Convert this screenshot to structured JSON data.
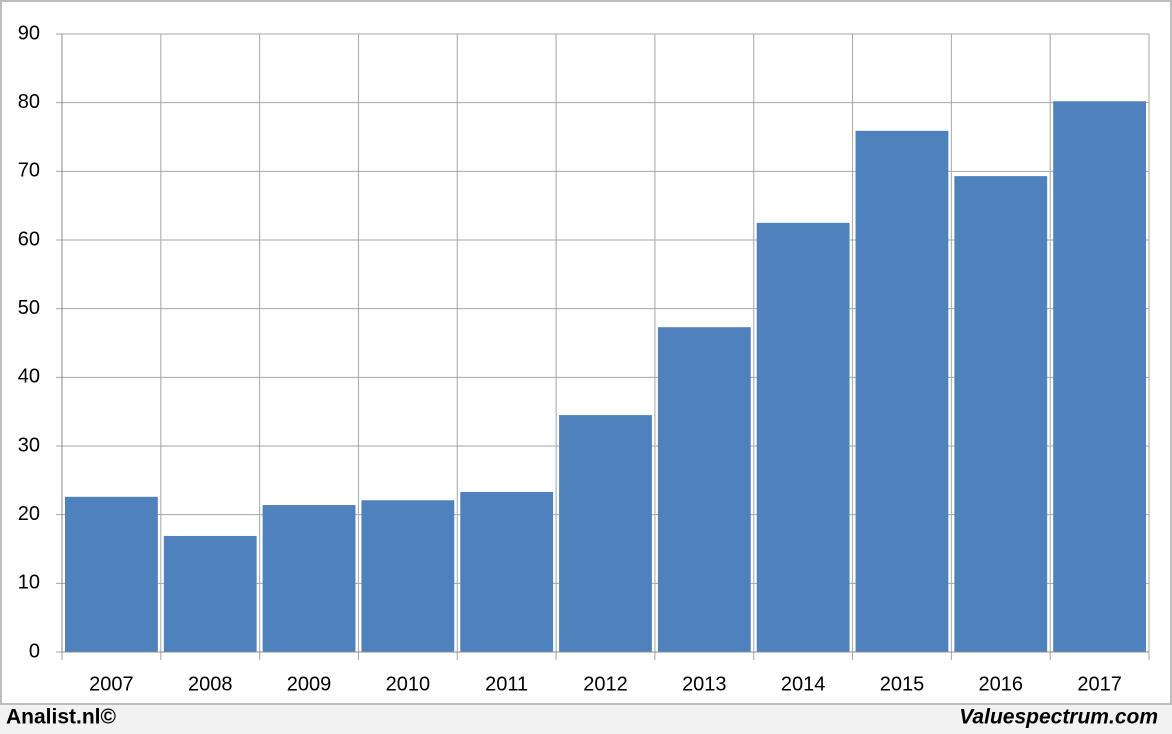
{
  "chart_data": {
    "type": "bar",
    "categories": [
      "2007",
      "2008",
      "2009",
      "2010",
      "2011",
      "2012",
      "2013",
      "2014",
      "2015",
      "2016",
      "2017"
    ],
    "values": [
      22.6,
      16.9,
      21.4,
      22.1,
      23.3,
      34.5,
      47.3,
      62.5,
      75.9,
      69.3,
      80.2
    ],
    "color": "#4f81bd",
    "ylim": [
      0,
      90
    ],
    "yticks": [
      0,
      10,
      20,
      30,
      40,
      50,
      60,
      70,
      80,
      90
    ],
    "grid": true
  },
  "footer": {
    "left": "Analist.nl©",
    "right": "Valuespectrum.com"
  }
}
